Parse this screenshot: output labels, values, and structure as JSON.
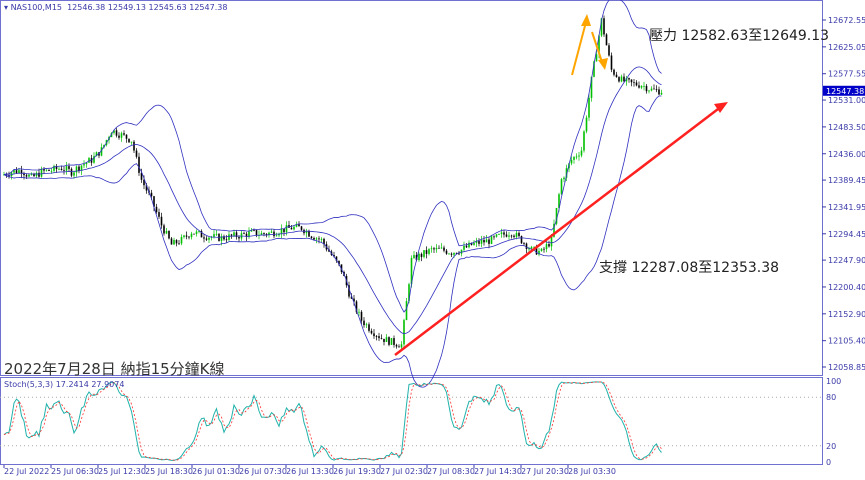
{
  "header": {
    "symbol": "NAS100,M15",
    "ohlc": "12546.38 12549.13 12545.63 12547.38"
  },
  "annotations": {
    "resistance": "壓力 12582.63至12649.13",
    "support": "支撐 12287.08至12353.38",
    "caption": "2022年7月28日 納指15分鐘K線"
  },
  "colors": {
    "bull": "#00c000",
    "bear": "#000000",
    "bands": "#3030c0",
    "trend": "#ff2020",
    "arrow": "#ffa500",
    "stoch_main": "#20b2aa",
    "stoch_signal": "#ff3030",
    "axis": "#3a3aa8"
  },
  "chart_data": {
    "type": "candlestick",
    "title": "NAS100,M15",
    "ylim": [
      12058.85,
      12672.55
    ],
    "yticks": [
      "12672.55",
      "12625.05",
      "12577.55",
      "12531.00",
      "12483.50",
      "12436.00",
      "12389.45",
      "12341.95",
      "12294.45",
      "12247.90",
      "12200.40",
      "12152.90",
      "12105.40",
      "12058.85"
    ],
    "current_price": "12547.38",
    "xticks": [
      "22 Jul 2022",
      "25 Jul 06:30",
      "25 Jul 12:30",
      "25 Jul 18:30",
      "26 Jul 01:30",
      "26 Jul 07:30",
      "26 Jul 13:30",
      "26 Jul 19:30",
      "27 Jul 02:30",
      "27 Jul 08:30",
      "27 Jul 14:30",
      "27 Jul 20:30",
      "28 Jul 03:30"
    ],
    "close_path": [
      12398,
      12404,
      12407,
      12393,
      12404,
      12407,
      12411,
      12404,
      12416,
      12425,
      12443,
      12478,
      12469,
      12460,
      12390,
      12354,
      12310,
      12275,
      12283,
      12298,
      12292,
      12289,
      12287,
      12290,
      12292,
      12296,
      12294,
      12296,
      12301,
      12305,
      12305,
      12292,
      12283,
      12257,
      12230,
      12177,
      12142,
      12124,
      12110,
      12103,
      12098,
      12248,
      12257,
      12266,
      12266,
      12262,
      12266,
      12275,
      12280,
      12283,
      12292,
      12298,
      12283,
      12266,
      12262,
      12283,
      12390,
      12425,
      12443,
      12566,
      12672,
      12584,
      12566,
      12560,
      12558,
      12549,
      12547
    ],
    "indicators": {
      "bollinger": "20,2",
      "stoch": {
        "label": "Stoch(5,3,3) 17.2414 27.9074",
        "main": 17.2414,
        "signal": 27.9074,
        "levels": [
          "100",
          "80",
          "20",
          "0"
        ]
      }
    }
  }
}
